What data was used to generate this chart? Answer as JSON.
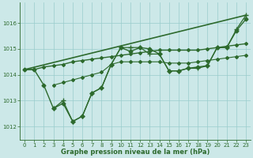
{
  "background_color": "#cce8e8",
  "grid_color": "#99cccc",
  "line_color": "#2d6a2d",
  "xlabel": "Graphe pression niveau de la mer (hPa)",
  "xlim": [
    -0.5,
    23.5
  ],
  "ylim": [
    1011.5,
    1016.8
  ],
  "yticks": [
    1012,
    1013,
    1014,
    1015,
    1016
  ],
  "xticks": [
    0,
    1,
    2,
    3,
    4,
    5,
    6,
    7,
    8,
    9,
    10,
    11,
    12,
    13,
    14,
    15,
    16,
    17,
    18,
    19,
    20,
    21,
    22,
    23
  ],
  "series_smooth": {
    "x": [
      0,
      1,
      2,
      3,
      4,
      5,
      6,
      7,
      8,
      9,
      10,
      11,
      12,
      13,
      14,
      15,
      16,
      17,
      18,
      19,
      20,
      21,
      22,
      23
    ],
    "y": [
      1014.2,
      1014.2,
      1014.3,
      1014.35,
      1014.4,
      1014.5,
      1014.55,
      1014.6,
      1014.65,
      1014.7,
      1014.75,
      1014.8,
      1014.85,
      1014.9,
      1014.95,
      1014.95,
      1014.95,
      1014.95,
      1014.95,
      1015.0,
      1015.05,
      1015.1,
      1015.15,
      1015.2
    ],
    "marker": "D",
    "markersize": 2.0,
    "linewidth": 1.0
  },
  "series_dotted": {
    "x": [
      3,
      4,
      5,
      6,
      7,
      8,
      9,
      10,
      11,
      12,
      13,
      14,
      15,
      16,
      17,
      18,
      19,
      20,
      21,
      22,
      23
    ],
    "y": [
      1013.6,
      1013.7,
      1013.8,
      1013.9,
      1014.0,
      1014.1,
      1014.4,
      1014.5,
      1014.5,
      1014.5,
      1014.5,
      1014.5,
      1014.45,
      1014.45,
      1014.45,
      1014.5,
      1014.55,
      1014.6,
      1014.65,
      1014.7,
      1014.75
    ],
    "marker": "D",
    "markersize": 2.0,
    "linewidth": 0.8
  },
  "series_wiggly": {
    "x": [
      0,
      1,
      2,
      3,
      4,
      5,
      6,
      7,
      8,
      9,
      10,
      11,
      12,
      13,
      14,
      15,
      16,
      17,
      18,
      19,
      20,
      21,
      22,
      23
    ],
    "y": [
      1014.2,
      1014.2,
      1013.6,
      1012.7,
      1012.9,
      1012.2,
      1012.4,
      1013.3,
      1013.5,
      1014.4,
      1015.05,
      1014.9,
      1015.05,
      1015.0,
      1014.8,
      1014.15,
      1014.15,
      1014.25,
      1014.3,
      1014.35,
      1015.05,
      1015.05,
      1015.7,
      1016.15
    ],
    "marker": "D",
    "markersize": 2.5,
    "linewidth": 1.0
  },
  "series_cross": {
    "x": [
      3,
      4,
      5,
      6,
      7,
      8,
      9,
      10,
      11,
      12,
      13,
      14,
      15,
      16,
      17,
      18,
      19,
      20,
      21,
      22,
      23
    ],
    "y": [
      1012.7,
      1013.0,
      1012.2,
      1012.4,
      1013.3,
      1013.5,
      1014.4,
      1015.05,
      1015.05,
      1015.05,
      1014.8,
      1014.8,
      1014.15,
      1014.15,
      1014.25,
      1014.25,
      1014.35,
      1015.05,
      1015.05,
      1015.75,
      1016.3
    ],
    "marker": "+",
    "markersize": 4.0,
    "linewidth": 0.9
  },
  "series_linear": {
    "x": [
      0,
      23
    ],
    "y": [
      1014.2,
      1016.3
    ],
    "linewidth": 1.2
  }
}
